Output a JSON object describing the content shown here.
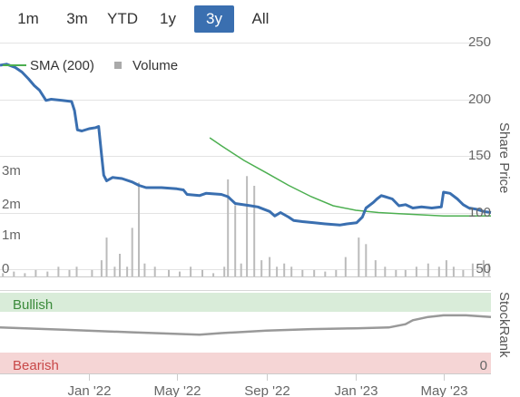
{
  "range_selector": {
    "buttons": [
      {
        "label": "1m",
        "active": false
      },
      {
        "label": "3m",
        "active": false
      },
      {
        "label": "YTD",
        "active": false
      },
      {
        "label": "1y",
        "active": false
      },
      {
        "label": "3y",
        "active": true
      },
      {
        "label": "All",
        "active": false
      }
    ],
    "active_color": "#3a6fb0"
  },
  "chart_data": [
    {
      "type": "line",
      "title": "",
      "xlabel": "",
      "ylabel": "Share Price",
      "ylim": [
        50,
        250
      ],
      "y_ticks": [
        "250",
        "200",
        "150",
        "100",
        "50"
      ],
      "x_ticks": [
        {
          "label": "Jan '22",
          "date": "2022-01-01"
        },
        {
          "label": "May '22",
          "date": "2022-05-01"
        },
        {
          "label": "Sep '22",
          "date": "2022-09-01"
        },
        {
          "label": "Jan '23",
          "date": "2023-01-01"
        },
        {
          "label": "May '23",
          "date": "2023-05-01"
        }
      ],
      "xlim": [
        "2021-09-01",
        "2023-07-05"
      ],
      "grid": true,
      "legend": {
        "position": "top-left",
        "entries": [
          {
            "name": "SMA (200)",
            "color": "#4caf50",
            "symbol": "line"
          },
          {
            "name": "Volume",
            "color": "#aaaaaa",
            "symbol": "square"
          }
        ]
      },
      "series": [
        {
          "name": "Share Price",
          "color": "#3a6fb0",
          "points": [
            [
              "2021-09-01",
              230
            ],
            [
              "2021-09-10",
              231
            ],
            [
              "2021-09-22",
              228
            ],
            [
              "2021-10-01",
              224
            ],
            [
              "2021-10-10",
              218
            ],
            [
              "2021-10-18",
              212
            ],
            [
              "2021-10-25",
              208
            ],
            [
              "2021-11-03",
              199
            ],
            [
              "2021-11-10",
              200
            ],
            [
              "2021-11-25",
              199
            ],
            [
              "2021-12-08",
              198
            ],
            [
              "2021-12-12",
              190
            ],
            [
              "2021-12-16",
              173
            ],
            [
              "2021-12-22",
              172
            ],
            [
              "2022-01-01",
              174
            ],
            [
              "2022-01-10",
              175
            ],
            [
              "2022-01-14",
              176
            ],
            [
              "2022-01-18",
              151
            ],
            [
              "2022-01-21",
              133
            ],
            [
              "2022-01-25",
              128
            ],
            [
              "2022-02-02",
              131
            ],
            [
              "2022-02-15",
              130
            ],
            [
              "2022-03-01",
              127
            ],
            [
              "2022-03-10",
              124
            ],
            [
              "2022-03-20",
              122
            ],
            [
              "2022-04-10",
              122
            ],
            [
              "2022-05-01",
              121
            ],
            [
              "2022-05-10",
              120
            ],
            [
              "2022-05-15",
              116
            ],
            [
              "2022-06-01",
              115
            ],
            [
              "2022-06-10",
              117
            ],
            [
              "2022-07-01",
              116
            ],
            [
              "2022-07-10",
              114
            ],
            [
              "2022-07-20",
              108
            ],
            [
              "2022-08-10",
              106
            ],
            [
              "2022-08-20",
              105
            ],
            [
              "2022-09-05",
              101
            ],
            [
              "2022-09-12",
              97
            ],
            [
              "2022-09-20",
              100
            ],
            [
              "2022-10-01",
              96
            ],
            [
              "2022-10-08",
              93
            ],
            [
              "2022-10-20",
              92
            ],
            [
              "2022-11-05",
              91
            ],
            [
              "2022-11-20",
              90
            ],
            [
              "2022-12-10",
              89
            ],
            [
              "2022-12-20",
              90
            ],
            [
              "2023-01-02",
              91
            ],
            [
              "2023-01-10",
              96
            ],
            [
              "2023-01-15",
              104
            ],
            [
              "2023-01-25",
              109
            ],
            [
              "2023-01-30",
              112
            ],
            [
              "2023-02-05",
              115
            ],
            [
              "2023-02-10",
              114
            ],
            [
              "2023-02-20",
              112
            ],
            [
              "2023-03-01",
              106
            ],
            [
              "2023-03-10",
              107
            ],
            [
              "2023-03-20",
              104
            ],
            [
              "2023-04-01",
              105
            ],
            [
              "2023-04-15",
              104
            ],
            [
              "2023-04-28",
              105
            ],
            [
              "2023-05-01",
              118
            ],
            [
              "2023-05-10",
              117
            ],
            [
              "2023-05-20",
              112
            ],
            [
              "2023-05-28",
              107
            ],
            [
              "2023-06-05",
              104
            ],
            [
              "2023-06-15",
              103
            ],
            [
              "2023-06-25",
              101
            ],
            [
              "2023-07-05",
              100
            ]
          ]
        },
        {
          "name": "SMA (200)",
          "color": "#4caf50",
          "points": [
            [
              "2022-06-15",
              166
            ],
            [
              "2022-07-01",
              159
            ],
            [
              "2022-08-01",
              146
            ],
            [
              "2022-09-01",
              135
            ],
            [
              "2022-10-01",
              124
            ],
            [
              "2022-11-01",
              114
            ],
            [
              "2022-12-01",
              106
            ],
            [
              "2023-01-01",
              102
            ],
            [
              "2023-02-01",
              100
            ],
            [
              "2023-03-01",
              99
            ],
            [
              "2023-04-01",
              98
            ],
            [
              "2023-05-01",
              97
            ],
            [
              "2023-06-01",
              97
            ],
            [
              "2023-07-05",
              97
            ]
          ]
        }
      ],
      "volume": {
        "name": "Volume",
        "color": "#bbbbbb",
        "y_ticks": [
          "3m",
          "2m",
          "1m",
          "0"
        ],
        "ylim": [
          0,
          3.5
        ],
        "bars": [
          [
            "2021-09-05",
            0.1
          ],
          [
            "2021-09-20",
            0.15
          ],
          [
            "2021-10-05",
            0.1
          ],
          [
            "2021-10-20",
            0.2
          ],
          [
            "2021-11-05",
            0.15
          ],
          [
            "2021-11-20",
            0.3
          ],
          [
            "2021-12-05",
            0.2
          ],
          [
            "2021-12-15",
            0.3
          ],
          [
            "2022-01-05",
            0.2
          ],
          [
            "2022-01-18",
            0.5
          ],
          [
            "2022-01-25",
            1.2
          ],
          [
            "2022-02-05",
            0.3
          ],
          [
            "2022-02-12",
            0.7
          ],
          [
            "2022-02-22",
            0.3
          ],
          [
            "2022-03-01",
            1.5
          ],
          [
            "2022-03-10",
            2.9
          ],
          [
            "2022-03-18",
            0.4
          ],
          [
            "2022-04-01",
            0.3
          ],
          [
            "2022-04-20",
            0.2
          ],
          [
            "2022-05-05",
            0.15
          ],
          [
            "2022-05-20",
            0.3
          ],
          [
            "2022-06-05",
            0.2
          ],
          [
            "2022-06-20",
            0.1
          ],
          [
            "2022-07-05",
            0.3
          ],
          [
            "2022-07-10",
            3.0
          ],
          [
            "2022-07-20",
            2.2
          ],
          [
            "2022-07-28",
            0.4
          ],
          [
            "2022-08-05",
            3.1
          ],
          [
            "2022-08-15",
            2.8
          ],
          [
            "2022-08-25",
            0.5
          ],
          [
            "2022-09-05",
            0.6
          ],
          [
            "2022-09-15",
            0.3
          ],
          [
            "2022-09-25",
            0.4
          ],
          [
            "2022-10-05",
            0.3
          ],
          [
            "2022-10-20",
            0.2
          ],
          [
            "2022-11-05",
            0.2
          ],
          [
            "2022-11-20",
            0.15
          ],
          [
            "2022-12-05",
            0.2
          ],
          [
            "2022-12-18",
            0.6
          ],
          [
            "2023-01-05",
            1.2
          ],
          [
            "2023-01-15",
            1.0
          ],
          [
            "2023-01-28",
            0.5
          ],
          [
            "2023-02-10",
            0.3
          ],
          [
            "2023-02-25",
            0.2
          ],
          [
            "2023-03-10",
            0.2
          ],
          [
            "2023-03-25",
            0.3
          ],
          [
            "2023-04-10",
            0.4
          ],
          [
            "2023-04-25",
            0.3
          ],
          [
            "2023-05-05",
            0.5
          ],
          [
            "2023-05-15",
            0.3
          ],
          [
            "2023-05-28",
            0.2
          ],
          [
            "2023-06-10",
            0.4
          ],
          [
            "2023-06-25",
            0.5
          ],
          [
            "2023-07-02",
            0.4
          ]
        ]
      }
    },
    {
      "type": "line",
      "title": "",
      "ylabel": "StockRank",
      "ylim": [
        0,
        100
      ],
      "y_ticks": [
        "0"
      ],
      "zones": [
        {
          "label": "Bullish",
          "from": 80,
          "to": 100,
          "color": "#d9ecd9",
          "text_color": "#3a8a3a"
        },
        {
          "label": "Bearish",
          "from": 0,
          "to": 20,
          "color": "#f5d5d5",
          "text_color": "#c84848"
        }
      ],
      "series": [
        {
          "name": "StockRank",
          "color": "#999999",
          "points": [
            [
              "2021-09-01",
              57
            ],
            [
              "2021-12-01",
              54
            ],
            [
              "2022-03-01",
              51
            ],
            [
              "2022-06-01",
              48
            ],
            [
              "2022-07-01",
              50
            ],
            [
              "2022-09-01",
              53
            ],
            [
              "2022-11-01",
              55
            ],
            [
              "2023-01-01",
              56
            ],
            [
              "2023-02-15",
              57
            ],
            [
              "2023-03-10",
              61
            ],
            [
              "2023-03-20",
              66
            ],
            [
              "2023-04-10",
              70
            ],
            [
              "2023-05-01",
              72
            ],
            [
              "2023-06-01",
              72
            ],
            [
              "2023-07-05",
              70
            ]
          ]
        }
      ]
    }
  ]
}
